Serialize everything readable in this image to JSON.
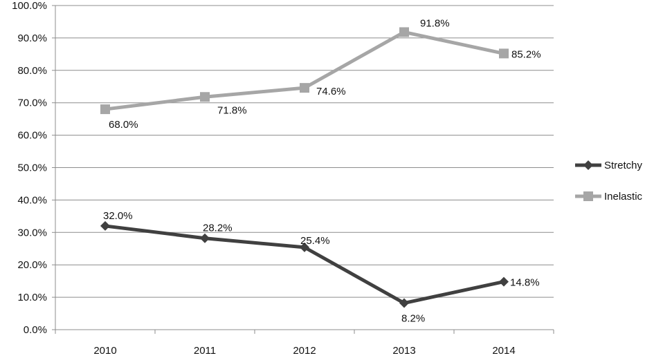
{
  "chart_data": {
    "type": "line",
    "categories": [
      "2010",
      "2011",
      "2012",
      "2013",
      "2014"
    ],
    "ylim": [
      0,
      100
    ],
    "yticks": [
      0,
      10,
      20,
      30,
      40,
      50,
      60,
      70,
      80,
      90,
      100
    ],
    "ytick_labels": [
      "0.0%",
      "10.0%",
      "20.0%",
      "30.0%",
      "40.0%",
      "50.0%",
      "60.0%",
      "70.0%",
      "80.0%",
      "90.0%",
      "100.0%"
    ],
    "grid": true,
    "legend_position": "right",
    "series": [
      {
        "name": "Stretchy",
        "values": [
          32.0,
          28.2,
          25.4,
          8.2,
          14.8
        ],
        "labels": [
          "32.0%",
          "28.2%",
          "25.4%",
          "8.2%",
          "14.8%"
        ],
        "color": "#404040",
        "marker": "diamond"
      },
      {
        "name": "Inelastic",
        "values": [
          68.0,
          71.8,
          74.6,
          91.8,
          85.2
        ],
        "labels": [
          "68.0%",
          "71.8%",
          "74.6%",
          "91.8%",
          "85.2%"
        ],
        "color": "#a6a6a6",
        "marker": "square"
      }
    ]
  }
}
